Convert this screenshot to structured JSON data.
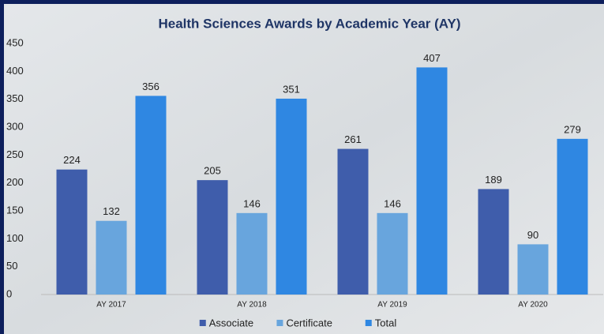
{
  "chart_data": {
    "type": "bar",
    "title": "Health Sciences Awards by Academic Year (AY)",
    "categories": [
      "AY 2017",
      "AY 2018",
      "AY 2019",
      "AY 2020"
    ],
    "series": [
      {
        "name": "Associate",
        "color": "#3f5dab",
        "values": [
          224,
          205,
          261,
          189
        ]
      },
      {
        "name": "Certificate",
        "color": "#68a5dd",
        "values": [
          132,
          146,
          146,
          90
        ]
      },
      {
        "name": "Total",
        "color": "#2f87e2",
        "values": [
          356,
          351,
          407,
          279
        ]
      }
    ],
    "ylim": [
      0,
      450
    ],
    "yticks": [
      0,
      50,
      100,
      150,
      200,
      250,
      300,
      350,
      400,
      450
    ],
    "grid": false,
    "legend": "bottom"
  }
}
